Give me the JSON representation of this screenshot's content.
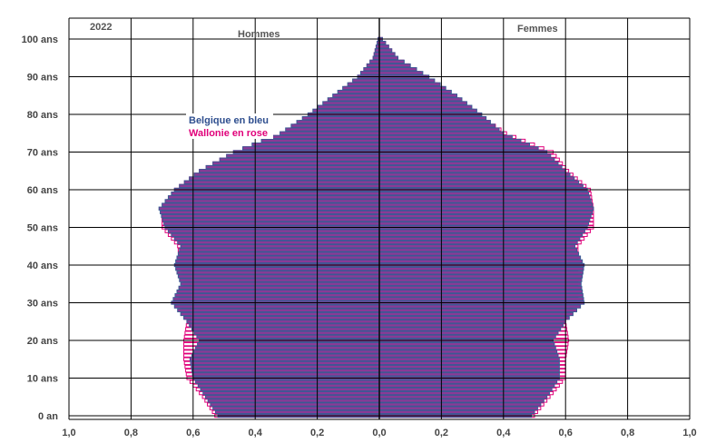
{
  "chart_data": {
    "type": "bar",
    "orientation": "horizontal",
    "subtype": "population-pyramid",
    "year_label": "2022",
    "left_label": "Hommes",
    "right_label": "Femmes",
    "legend": [
      {
        "text": "Belgique en bleu",
        "color": "#2f4f8f"
      },
      {
        "text": "Wallonie en rose",
        "color": "#e0007a"
      }
    ],
    "y_tick_labels": [
      "0 an",
      "10 ans",
      "20 ans",
      "30 ans",
      "40 ans",
      "50 ans",
      "60 ans",
      "70 ans",
      "80 ans",
      "90 ans",
      "100 ans"
    ],
    "y_ticks": [
      0,
      10,
      20,
      30,
      40,
      50,
      60,
      70,
      80,
      90,
      100
    ],
    "x_tick_labels": [
      "1,0",
      "0,8",
      "0,6",
      "0,4",
      "0,2",
      "0,0",
      "0,2",
      "0,4",
      "0,6",
      "0,8",
      "1,0"
    ],
    "x_range": [
      -1.0,
      1.0
    ],
    "y_range": [
      0,
      101
    ],
    "grid": true,
    "colors": {
      "belgique_outline": "#3a5a94",
      "wallonie_outline": "#e0007a",
      "wallonie_fill": "#8a3a96",
      "grid": "#000000"
    },
    "series": [
      {
        "name": "Belgique en bleu",
        "side": "Hommes",
        "ages": [
          0,
          5,
          10,
          15,
          20,
          25,
          30,
          35,
          40,
          45,
          50,
          55,
          60,
          65,
          70,
          75,
          80,
          85,
          90,
          95,
          100
        ],
        "values": [
          0.52,
          0.56,
          0.6,
          0.61,
          0.58,
          0.62,
          0.67,
          0.64,
          0.66,
          0.64,
          0.69,
          0.71,
          0.66,
          0.58,
          0.47,
          0.32,
          0.23,
          0.15,
          0.07,
          0.02,
          0.004
        ]
      },
      {
        "name": "Wallonie en rose",
        "side": "Hommes",
        "ages": [
          0,
          5,
          10,
          15,
          20,
          25,
          30,
          35,
          40,
          45,
          50,
          55,
          60,
          65,
          70,
          75,
          80,
          85,
          90,
          95,
          100
        ],
        "values": [
          0.53,
          0.57,
          0.62,
          0.63,
          0.63,
          0.62,
          0.65,
          0.63,
          0.64,
          0.65,
          0.7,
          0.7,
          0.66,
          0.58,
          0.47,
          0.31,
          0.22,
          0.14,
          0.07,
          0.02,
          0.004
        ]
      },
      {
        "name": "Belgique en bleu",
        "side": "Femmes",
        "ages": [
          0,
          5,
          10,
          15,
          20,
          25,
          30,
          35,
          40,
          45,
          50,
          55,
          60,
          65,
          70,
          75,
          80,
          85,
          90,
          95,
          100
        ],
        "values": [
          0.49,
          0.54,
          0.58,
          0.58,
          0.56,
          0.6,
          0.66,
          0.65,
          0.66,
          0.63,
          0.67,
          0.69,
          0.67,
          0.6,
          0.54,
          0.4,
          0.33,
          0.25,
          0.16,
          0.06,
          0.01
        ]
      },
      {
        "name": "Wallonie en rose",
        "side": "Femmes",
        "ages": [
          0,
          5,
          10,
          15,
          20,
          25,
          30,
          35,
          40,
          45,
          50,
          55,
          60,
          65,
          70,
          75,
          80,
          85,
          90,
          95,
          100
        ],
        "values": [
          0.5,
          0.55,
          0.6,
          0.6,
          0.61,
          0.6,
          0.64,
          0.64,
          0.64,
          0.64,
          0.69,
          0.69,
          0.68,
          0.61,
          0.56,
          0.41,
          0.32,
          0.24,
          0.15,
          0.06,
          0.01
        ]
      }
    ]
  }
}
